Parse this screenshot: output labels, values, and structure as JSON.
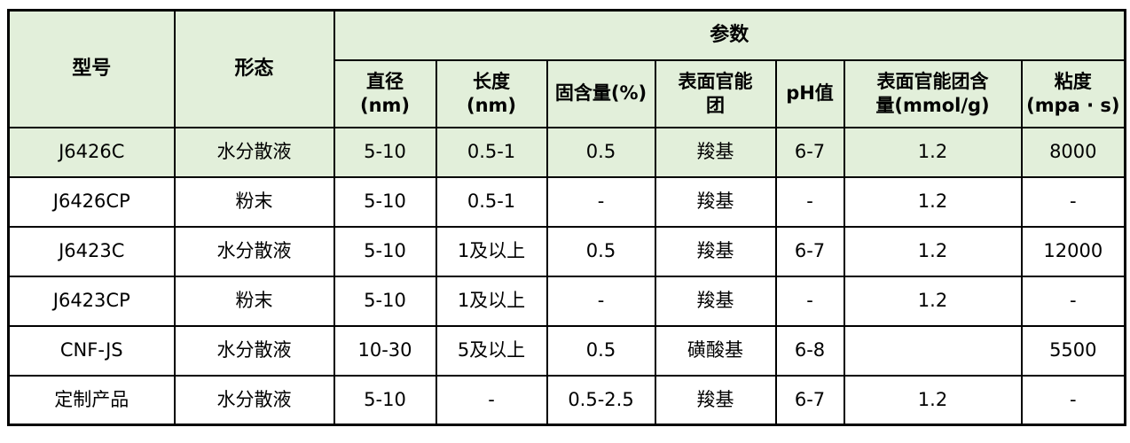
{
  "colors": {
    "highlight_row_bg": "#e2efda",
    "border": "#000000",
    "text": "#000000"
  },
  "table": {
    "header": {
      "model": "型号",
      "form": "形态",
      "params": "参数",
      "sub": [
        "直径\n(nm)",
        "长度\n(nm)",
        "固含量(%)",
        "表面官能\n团",
        "pH值",
        "表面官能团含\n量(mmol/g)",
        "粘度\n(mpa · s)"
      ]
    },
    "rows": [
      {
        "model": "J6426C",
        "form": "水分散液",
        "values": [
          "5-10",
          "0.5-1",
          "0.5",
          "羧基",
          "6-7",
          "1.2",
          "8000"
        ],
        "highlight": true
      },
      {
        "model": "J6426CP",
        "form": "粉末",
        "values": [
          "5-10",
          "0.5-1",
          "-",
          "羧基",
          "-",
          "1.2",
          "-"
        ],
        "highlight": false
      },
      {
        "model": "J6423C",
        "form": "水分散液",
        "values": [
          "5-10",
          "1及以上",
          "0.5",
          "羧基",
          "6-7",
          "1.2",
          "12000"
        ],
        "highlight": false
      },
      {
        "model": "J6423CP",
        "form": "粉末",
        "values": [
          "5-10",
          "1及以上",
          "-",
          "羧基",
          "-",
          "1.2",
          "-"
        ],
        "highlight": false
      },
      {
        "model": "CNF-JS",
        "form": "水分散液",
        "values": [
          "10-30",
          "5及以上",
          "0.5",
          "磺酸基",
          "6-8",
          "",
          "5500"
        ],
        "highlight": false
      },
      {
        "model": "定制产品",
        "form": "水分散液",
        "values": [
          "5-10",
          "-",
          "0.5-2.5",
          "羧基",
          "6-7",
          "1.2",
          "-"
        ],
        "highlight": false
      }
    ]
  }
}
